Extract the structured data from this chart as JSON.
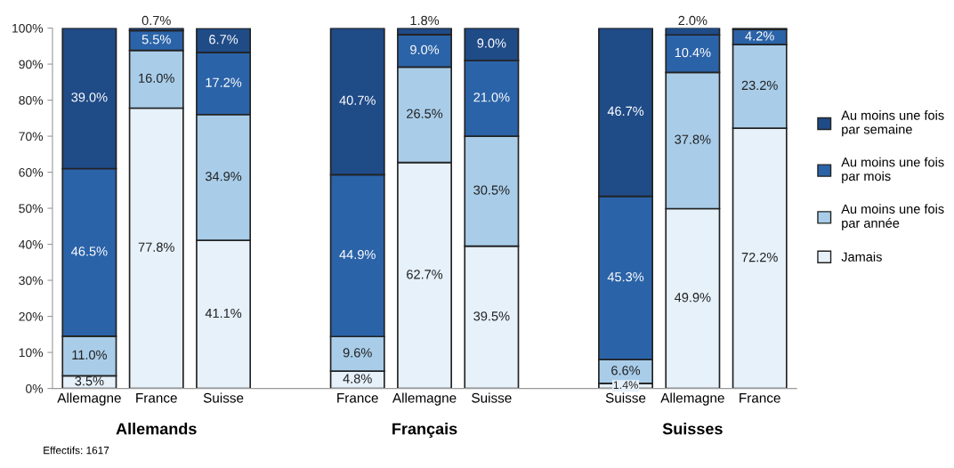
{
  "chart_data": {
    "type": "bar",
    "stacked": true,
    "categories": [
      "Allemagne",
      "France",
      "Suisse",
      null,
      "France",
      "Allemagne",
      "Suisse",
      null,
      "Suisse",
      "Allemagne",
      "France"
    ],
    "ylim": [
      0,
      100
    ],
    "yticks": [
      {
        "value": 0,
        "label": "0%"
      },
      {
        "value": 10,
        "label": "10%"
      },
      {
        "value": 20,
        "label": "20%"
      },
      {
        "value": 30,
        "label": "30%"
      },
      {
        "value": 40,
        "label": "40%"
      },
      {
        "value": 50,
        "label": "50%"
      },
      {
        "value": 60,
        "label": "60%"
      },
      {
        "value": 70,
        "label": "70%"
      },
      {
        "value": 80,
        "label": "80%"
      },
      {
        "value": 90,
        "label": "90%"
      },
      {
        "value": 100,
        "label": "100%"
      }
    ],
    "legend": "right",
    "series": [
      {
        "name": "Jamais",
        "color": "#e6f1fa",
        "values": [
          3.5,
          77.8,
          41.1,
          null,
          4.8,
          62.7,
          39.5,
          null,
          1.4,
          49.9,
          72.2
        ],
        "value_labels": [
          "3.5%",
          "77.8%",
          "41.1%",
          null,
          "4.8%",
          "62.7%",
          "39.5%",
          null,
          "1.4%",
          "49.9%",
          "72.2%"
        ]
      },
      {
        "name": "Au moins une fois par année",
        "color": "#a9cde9",
        "values": [
          11.0,
          16.0,
          34.9,
          null,
          9.6,
          26.5,
          30.5,
          null,
          6.6,
          37.8,
          23.2
        ],
        "value_labels": [
          "11.0%",
          "16.0%",
          "34.9%",
          null,
          "9.6%",
          "26.5%",
          "30.5%",
          null,
          "6.6%",
          "37.8%",
          "23.2%"
        ]
      },
      {
        "name": "Au moins une fois par mois",
        "color": "#2b63a8",
        "values": [
          46.5,
          5.5,
          17.2,
          null,
          44.9,
          9.0,
          21.0,
          null,
          45.3,
          10.4,
          4.2
        ],
        "value_labels": [
          "46.5%",
          "5.5%",
          "17.2%",
          null,
          "44.9%",
          "9.0%",
          "21.0%",
          null,
          "45.3%",
          "10.4%",
          "4.2%"
        ]
      },
      {
        "name": "Au moins une fois par semaine",
        "color": "#1f4b87",
        "values": [
          39.0,
          0.7,
          6.7,
          null,
          40.7,
          1.8,
          9.0,
          null,
          46.7,
          2.0,
          0.4
        ],
        "value_labels": [
          "39.0%",
          "0.7%",
          "6.7%",
          null,
          "40.7%",
          "1.8%",
          "9.0%",
          null,
          "46.7%",
          "2.0%",
          null
        ]
      }
    ],
    "annotations": [
      "Allemands",
      "Français",
      "Suisses",
      "Effectifs: 1617"
    ]
  }
}
